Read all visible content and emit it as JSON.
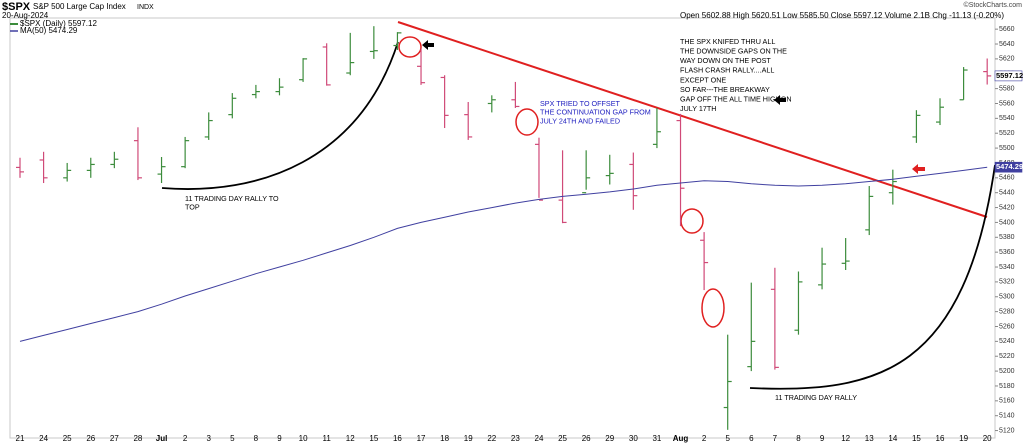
{
  "header": {
    "symbol": "$SPX",
    "name": "S&P 500 Large Cap Index",
    "exchange": "INDX",
    "date": "20-Aug-2024",
    "quote": "Open 5602.88  High 5620.51  Low 5585.50  Close 5597.12  Volume 2.1B  Chg -11.13 (-0.20%)",
    "copyright": "©StockCharts.com"
  },
  "chart_data": {
    "type": "ohlc",
    "categories": [
      "21",
      "24",
      "25",
      "26",
      "27",
      "28",
      "Jul",
      "2",
      "3",
      "5",
      "8",
      "9",
      "10",
      "11",
      "12",
      "15",
      "16",
      "17",
      "18",
      "19",
      "22",
      "23",
      "24",
      "25",
      "26",
      "29",
      "30",
      "31",
      "Aug",
      "2",
      "5",
      "6",
      "7",
      "8",
      "9",
      "12",
      "13",
      "14",
      "15",
      "16",
      "19",
      "20"
    ],
    "ylim": [
      5110,
      5675
    ],
    "yticks": [
      5120,
      5140,
      5160,
      5180,
      5200,
      5220,
      5240,
      5260,
      5280,
      5300,
      5320,
      5340,
      5360,
      5380,
      5400,
      5420,
      5440,
      5460,
      5480,
      5500,
      5520,
      5540,
      5560,
      5580,
      5600,
      5620,
      5640,
      5660
    ],
    "up_color": "#3c8c3c",
    "down_color": "#d04a78",
    "series": [
      {
        "name": "$SPX (Daily) 5597.12",
        "color": "#3c8c3c",
        "open": [
          5474,
          5484,
          5460,
          5470,
          5478,
          5510,
          5465,
          5475,
          5515,
          5545,
          5572,
          5576,
          5592,
          5636,
          5601,
          5630,
          5638,
          5610,
          5595,
          5545,
          5560,
          5565,
          5505,
          5430,
          5440,
          5463,
          5478,
          5505,
          5537,
          5376,
          5151,
          5206,
          5310,
          5255,
          5316,
          5345,
          5390,
          5440,
          5515,
          5535,
          5565,
          5602.88
        ],
        "high": [
          5487,
          5495,
          5480,
          5487,
          5495,
          5528,
          5488,
          5515,
          5548,
          5574,
          5585,
          5594,
          5621,
          5641,
          5655,
          5664,
          5656,
          5634,
          5598,
          5562,
          5571,
          5589,
          5514,
          5497,
          5497,
          5491,
          5494,
          5554,
          5546,
          5387,
          5249,
          5319,
          5339,
          5334,
          5366,
          5379,
          5449,
          5471,
          5551,
          5567,
          5609,
          5620.51
        ],
        "low": [
          5460,
          5453,
          5455,
          5460,
          5473,
          5457,
          5453,
          5473,
          5511,
          5540,
          5567,
          5571,
          5589,
          5584,
          5598,
          5620,
          5632,
          5585,
          5527,
          5511,
          5548,
          5554,
          5433,
          5399,
          5444,
          5451,
          5417,
          5500,
          5395,
          5309,
          5121,
          5200,
          5202,
          5249,
          5310,
          5336,
          5383,
          5424,
          5507,
          5531,
          5565,
          5585.5
        ],
        "close": [
          5468,
          5460,
          5470,
          5478,
          5485,
          5460,
          5475,
          5510,
          5537,
          5567,
          5576,
          5582,
          5620,
          5585,
          5615,
          5631,
          5655,
          5588,
          5544,
          5515,
          5565,
          5556,
          5430,
          5400,
          5460,
          5466,
          5436,
          5522,
          5446,
          5346,
          5186,
          5240,
          5205,
          5320,
          5344,
          5348,
          5435,
          5455,
          5544,
          5555,
          5605,
          5597.12
        ]
      },
      {
        "name": "MA(50) 5474.29",
        "color": "#4040a0",
        "values": [
          5240,
          5248,
          5256,
          5264,
          5272,
          5280,
          5290,
          5301,
          5311,
          5321,
          5331,
          5340,
          5349,
          5359,
          5369,
          5380,
          5392,
          5400,
          5407,
          5414,
          5420,
          5426,
          5431,
          5435,
          5438,
          5441,
          5445,
          5450,
          5453,
          5456,
          5455,
          5452,
          5450,
          5449,
          5450,
          5452,
          5455,
          5458,
          5462,
          5466,
          5470,
          5474.29
        ]
      }
    ],
    "last_labels": [
      "5597.12",
      "5474.29"
    ],
    "annotations": [
      {
        "lines": [
          "11 TRADING DAY RALLY TO",
          "TOP"
        ],
        "color": "#000000"
      },
      {
        "lines": [
          "SPX TRIED TO OFFSET",
          "THE CONTINUATION GAP FROM",
          "JULY 24TH AND FAILED"
        ],
        "color": "#2020c0"
      },
      {
        "lines": [
          "THE SPX KNIFED THRU ALL",
          "THE DOWNSIDE GAPS ON THE",
          "WAY DOWN ON THE POST",
          "FLASH CRASH RALLY....ALL",
          "EXCEPT ONE",
          "SO FAR---THE BREAKWAY",
          "GAP OFF THE ALL TIME HIGHON",
          "JULY 17TH"
        ],
        "color": "#000000"
      },
      {
        "lines": [
          "11 TRADING DAY RALLY"
        ],
        "color": "#000000"
      }
    ]
  }
}
